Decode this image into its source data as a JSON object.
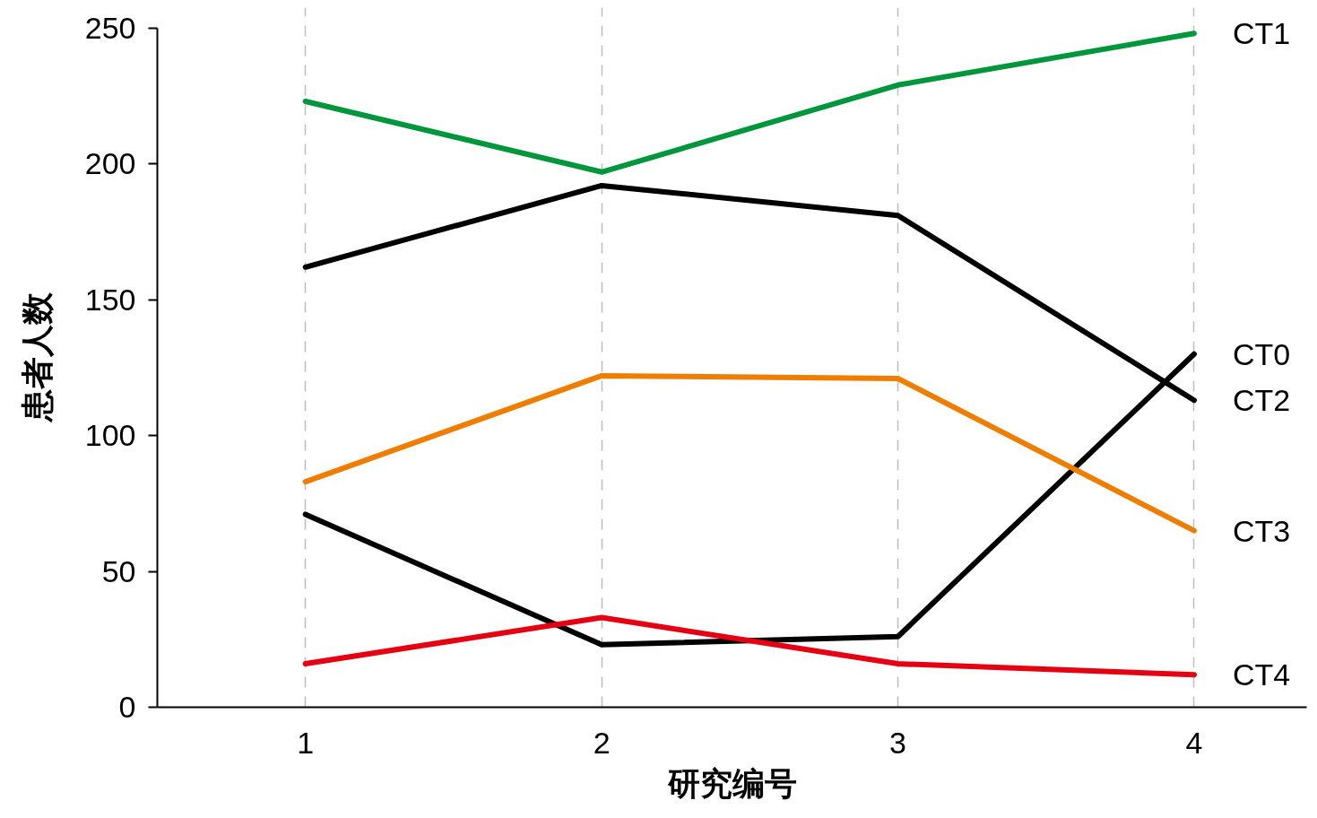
{
  "chart_data": {
    "type": "line",
    "xlabel": "研究编号",
    "ylabel": "患者人数",
    "x": [
      1,
      2,
      3,
      4
    ],
    "xlim": [
      0.5,
      4.38
    ],
    "xticks": [
      1,
      2,
      3,
      4
    ],
    "ylim": [
      0,
      250
    ],
    "yticks": [
      0,
      50,
      100,
      150,
      200,
      250
    ],
    "grid": "x",
    "line_style": "solid",
    "series": [
      {
        "name": "CT1",
        "color": "#00963c",
        "values": [
          223,
          197,
          229,
          248
        ]
      },
      {
        "name": "CT0",
        "color": "#000000",
        "values": [
          71,
          23,
          26,
          130
        ]
      },
      {
        "name": "CT2",
        "color": "#000000",
        "values": [
          162,
          192,
          181,
          113
        ]
      },
      {
        "name": "CT3",
        "color": "#ee7d00",
        "values": [
          83,
          122,
          121,
          65
        ]
      },
      {
        "name": "CT4",
        "color": "#e50012",
        "values": [
          16,
          33,
          16,
          12
        ]
      }
    ]
  }
}
